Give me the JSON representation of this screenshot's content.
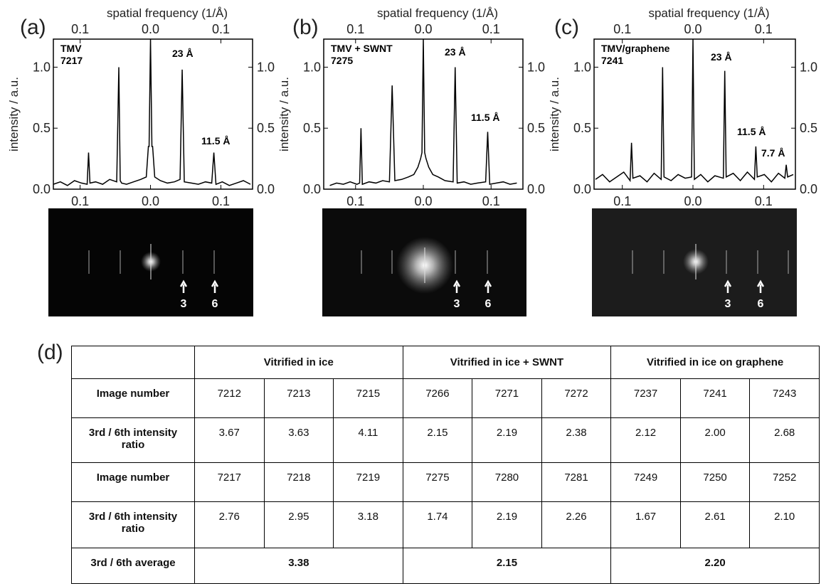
{
  "chart_data": [
    {
      "type": "line",
      "x_label_top": "spatial frequency (1/Å)",
      "y_label": "intensity / a.u.",
      "sample": [
        "TMV",
        "7217"
      ],
      "xlim": [
        -0.138,
        0.145
      ],
      "ylim": [
        0,
        1.23
      ],
      "xticks": [
        {
          "value": -0.1,
          "label": "0.1"
        },
        {
          "value": 0,
          "label": "0.0"
        },
        0.1
      ],
      "yticks": [
        {
          "value": 0,
          "label": "0.0"
        },
        0.5,
        {
          "value": 1,
          "label": "1.0"
        }
      ],
      "x": [
        -0.138,
        -0.128,
        -0.118,
        -0.108,
        -0.098,
        -0.09,
        -0.088,
        -0.086,
        -0.078,
        -0.068,
        -0.058,
        -0.048,
        -0.045,
        -0.043,
        -0.041,
        -0.034,
        -0.024,
        -0.014,
        -0.006,
        -0.003,
        -0.002,
        0,
        0.002,
        0.003,
        0.006,
        0.014,
        0.024,
        0.034,
        0.042,
        0.045,
        0.048,
        0.058,
        0.068,
        0.078,
        0.087,
        0.09,
        0.093,
        0.102,
        0.112,
        0.122,
        0.132,
        0.142
      ],
      "series": [
        {
          "color": "#000000",
          "values": [
            0.04,
            0.06,
            0.03,
            0.07,
            0.05,
            0.04,
            0.3,
            0.05,
            0.06,
            0.04,
            0.08,
            0.06,
            1.0,
            0.07,
            0.05,
            0.04,
            0.06,
            0.08,
            0.1,
            0.35,
            0.35,
            1.23,
            0.35,
            0.35,
            0.1,
            0.07,
            0.05,
            0.06,
            0.08,
            0.98,
            0.06,
            0.05,
            0.04,
            0.06,
            0.05,
            0.3,
            0.04,
            0.06,
            0.03,
            0.05,
            0.07,
            0.04
          ]
        }
      ],
      "annotations": [
        "23 Å",
        "11.5 Å"
      ]
    },
    {
      "type": "line",
      "x_label_top": "spatial frequency (1/Å)",
      "y_label": "intensity / a.u.",
      "sample": [
        "TMV + SWNT",
        "7275"
      ],
      "xlim": [
        -0.147,
        0.147
      ],
      "ylim": [
        0,
        1.23
      ],
      "xticks": [
        {
          "value": -0.1,
          "label": "0.1"
        },
        {
          "value": 0,
          "label": "0.0"
        },
        0.1
      ],
      "yticks": [
        {
          "value": 0,
          "label": "0.0"
        },
        0.5,
        {
          "value": 1,
          "label": "1.0"
        }
      ],
      "x": [
        -0.138,
        -0.128,
        -0.118,
        -0.108,
        -0.098,
        -0.094,
        -0.092,
        -0.09,
        -0.08,
        -0.07,
        -0.06,
        -0.05,
        -0.046,
        -0.042,
        -0.032,
        -0.022,
        -0.014,
        -0.008,
        -0.004,
        -0.002,
        0,
        0.002,
        0.004,
        0.008,
        0.014,
        0.022,
        0.032,
        0.044,
        0.047,
        0.05,
        0.06,
        0.07,
        0.08,
        0.092,
        0.095,
        0.098,
        0.108,
        0.118,
        0.128,
        0.138
      ],
      "series": [
        {
          "color": "#000000",
          "values": [
            0.03,
            0.05,
            0.04,
            0.06,
            0.04,
            0.05,
            0.5,
            0.04,
            0.06,
            0.05,
            0.07,
            0.06,
            0.85,
            0.07,
            0.08,
            0.1,
            0.12,
            0.18,
            0.25,
            0.3,
            1.23,
            0.3,
            0.25,
            0.18,
            0.12,
            0.1,
            0.07,
            0.06,
            1.0,
            0.05,
            0.06,
            0.04,
            0.05,
            0.06,
            0.47,
            0.04,
            0.05,
            0.06,
            0.04,
            0.05
          ]
        }
      ],
      "annotations": [
        "23 Å",
        "11.5 Å"
      ]
    },
    {
      "type": "line",
      "x_label_top": "spatial frequency (1/Å)",
      "y_label": "intensity / a.u.",
      "sample": [
        "TMV/graphene",
        "7241"
      ],
      "xlim": [
        -0.14,
        0.145
      ],
      "ylim": [
        0,
        1.23
      ],
      "xticks": [
        {
          "value": -0.1,
          "label": "0.1"
        },
        {
          "value": 0,
          "label": "0.0"
        },
        0.1
      ],
      "yticks": [
        {
          "value": 0,
          "label": "0.0"
        },
        0.5,
        {
          "value": 1,
          "label": "1.0"
        }
      ],
      "x": [
        -0.138,
        -0.128,
        -0.118,
        -0.108,
        -0.098,
        -0.089,
        -0.087,
        -0.085,
        -0.075,
        -0.065,
        -0.055,
        -0.045,
        -0.043,
        -0.041,
        -0.031,
        -0.021,
        -0.011,
        -0.002,
        0,
        0.002,
        0.011,
        0.021,
        0.031,
        0.043,
        0.045,
        0.047,
        0.057,
        0.067,
        0.077,
        0.087,
        0.089,
        0.091,
        0.101,
        0.111,
        0.121,
        0.13,
        0.132,
        0.134,
        0.142
      ],
      "series": [
        {
          "color": "#000000",
          "values": [
            0.08,
            0.12,
            0.06,
            0.1,
            0.14,
            0.07,
            0.38,
            0.09,
            0.11,
            0.06,
            0.13,
            0.08,
            1.0,
            0.1,
            0.07,
            0.12,
            0.09,
            0.1,
            1.23,
            0.08,
            0.12,
            0.06,
            0.11,
            0.09,
            0.97,
            0.1,
            0.13,
            0.07,
            0.14,
            0.08,
            0.35,
            0.1,
            0.12,
            0.06,
            0.13,
            0.09,
            0.2,
            0.1,
            0.12
          ]
        }
      ],
      "annotations": [
        "23 Å",
        "11.5 Å",
        "7.7 Å"
      ]
    }
  ],
  "panel_labels": [
    "(a)",
    "(b)",
    "(c)",
    "(d)"
  ],
  "images": [
    {
      "arrow_labels": [
        "3",
        "6"
      ]
    },
    {
      "arrow_labels": [
        "3",
        "6"
      ]
    },
    {
      "arrow_labels": [
        "3",
        "6"
      ]
    }
  ],
  "table": {
    "groups": [
      "Vitrified in ice",
      "Vitrified in ice + SWNT",
      "Vitrified in ice on graphene"
    ],
    "rows": [
      {
        "label": "Image number",
        "cells": [
          "7212",
          "7213",
          "7215",
          "7266",
          "7271",
          "7272",
          "7237",
          "7241",
          "7243"
        ]
      },
      {
        "label": "3rd / 6th intensity ratio",
        "cells": [
          "3.67",
          "3.63",
          "4.11",
          "2.15",
          "2.19",
          "2.38",
          "2.12",
          "2.00",
          "2.68"
        ]
      },
      {
        "label": "Image number",
        "cells": [
          "7217",
          "7218",
          "7219",
          "7275",
          "7280",
          "7281",
          "7249",
          "7250",
          "7252"
        ]
      },
      {
        "label": "3rd / 6th intensity ratio",
        "cells": [
          "2.76",
          "2.95",
          "3.18",
          "1.74",
          "2.19",
          "2.26",
          "1.67",
          "2.61",
          "2.10"
        ]
      },
      {
        "label": "3rd / 6th average",
        "cells": [
          "3.38",
          "2.15",
          "2.20"
        ]
      }
    ]
  }
}
